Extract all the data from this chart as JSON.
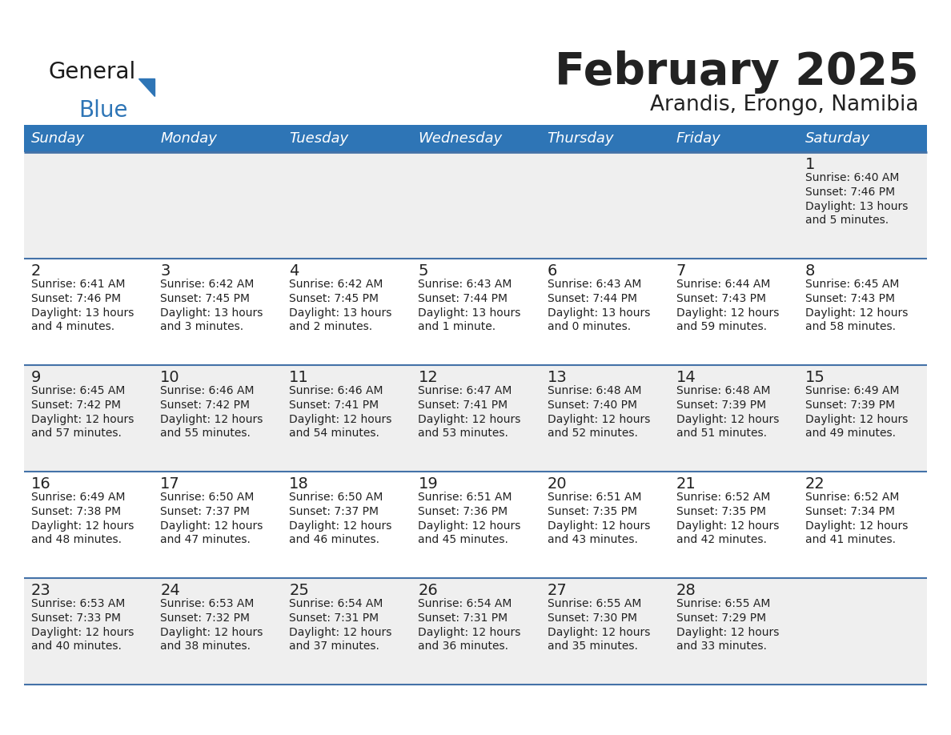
{
  "title": "February 2025",
  "subtitle": "Arandis, Erongo, Namibia",
  "header_color": "#2E75B6",
  "header_text_color": "#FFFFFF",
  "day_names": [
    "Sunday",
    "Monday",
    "Tuesday",
    "Wednesday",
    "Thursday",
    "Friday",
    "Saturday"
  ],
  "background_color": "#FFFFFF",
  "cell_bg_gray": "#EFEFEF",
  "divider_color": "#4472A8",
  "text_color": "#222222",
  "calendar_data": [
    [
      {
        "day": "",
        "sunrise": "",
        "sunset": "",
        "daylight": ""
      },
      {
        "day": "",
        "sunrise": "",
        "sunset": "",
        "daylight": ""
      },
      {
        "day": "",
        "sunrise": "",
        "sunset": "",
        "daylight": ""
      },
      {
        "day": "",
        "sunrise": "",
        "sunset": "",
        "daylight": ""
      },
      {
        "day": "",
        "sunrise": "",
        "sunset": "",
        "daylight": ""
      },
      {
        "day": "",
        "sunrise": "",
        "sunset": "",
        "daylight": ""
      },
      {
        "day": "1",
        "sunrise": "Sunrise: 6:40 AM",
        "sunset": "Sunset: 7:46 PM",
        "daylight": "Daylight: 13 hours\nand 5 minutes."
      }
    ],
    [
      {
        "day": "2",
        "sunrise": "Sunrise: 6:41 AM",
        "sunset": "Sunset: 7:46 PM",
        "daylight": "Daylight: 13 hours\nand 4 minutes."
      },
      {
        "day": "3",
        "sunrise": "Sunrise: 6:42 AM",
        "sunset": "Sunset: 7:45 PM",
        "daylight": "Daylight: 13 hours\nand 3 minutes."
      },
      {
        "day": "4",
        "sunrise": "Sunrise: 6:42 AM",
        "sunset": "Sunset: 7:45 PM",
        "daylight": "Daylight: 13 hours\nand 2 minutes."
      },
      {
        "day": "5",
        "sunrise": "Sunrise: 6:43 AM",
        "sunset": "Sunset: 7:44 PM",
        "daylight": "Daylight: 13 hours\nand 1 minute."
      },
      {
        "day": "6",
        "sunrise": "Sunrise: 6:43 AM",
        "sunset": "Sunset: 7:44 PM",
        "daylight": "Daylight: 13 hours\nand 0 minutes."
      },
      {
        "day": "7",
        "sunrise": "Sunrise: 6:44 AM",
        "sunset": "Sunset: 7:43 PM",
        "daylight": "Daylight: 12 hours\nand 59 minutes."
      },
      {
        "day": "8",
        "sunrise": "Sunrise: 6:45 AM",
        "sunset": "Sunset: 7:43 PM",
        "daylight": "Daylight: 12 hours\nand 58 minutes."
      }
    ],
    [
      {
        "day": "9",
        "sunrise": "Sunrise: 6:45 AM",
        "sunset": "Sunset: 7:42 PM",
        "daylight": "Daylight: 12 hours\nand 57 minutes."
      },
      {
        "day": "10",
        "sunrise": "Sunrise: 6:46 AM",
        "sunset": "Sunset: 7:42 PM",
        "daylight": "Daylight: 12 hours\nand 55 minutes."
      },
      {
        "day": "11",
        "sunrise": "Sunrise: 6:46 AM",
        "sunset": "Sunset: 7:41 PM",
        "daylight": "Daylight: 12 hours\nand 54 minutes."
      },
      {
        "day": "12",
        "sunrise": "Sunrise: 6:47 AM",
        "sunset": "Sunset: 7:41 PM",
        "daylight": "Daylight: 12 hours\nand 53 minutes."
      },
      {
        "day": "13",
        "sunrise": "Sunrise: 6:48 AM",
        "sunset": "Sunset: 7:40 PM",
        "daylight": "Daylight: 12 hours\nand 52 minutes."
      },
      {
        "day": "14",
        "sunrise": "Sunrise: 6:48 AM",
        "sunset": "Sunset: 7:39 PM",
        "daylight": "Daylight: 12 hours\nand 51 minutes."
      },
      {
        "day": "15",
        "sunrise": "Sunrise: 6:49 AM",
        "sunset": "Sunset: 7:39 PM",
        "daylight": "Daylight: 12 hours\nand 49 minutes."
      }
    ],
    [
      {
        "day": "16",
        "sunrise": "Sunrise: 6:49 AM",
        "sunset": "Sunset: 7:38 PM",
        "daylight": "Daylight: 12 hours\nand 48 minutes."
      },
      {
        "day": "17",
        "sunrise": "Sunrise: 6:50 AM",
        "sunset": "Sunset: 7:37 PM",
        "daylight": "Daylight: 12 hours\nand 47 minutes."
      },
      {
        "day": "18",
        "sunrise": "Sunrise: 6:50 AM",
        "sunset": "Sunset: 7:37 PM",
        "daylight": "Daylight: 12 hours\nand 46 minutes."
      },
      {
        "day": "19",
        "sunrise": "Sunrise: 6:51 AM",
        "sunset": "Sunset: 7:36 PM",
        "daylight": "Daylight: 12 hours\nand 45 minutes."
      },
      {
        "day": "20",
        "sunrise": "Sunrise: 6:51 AM",
        "sunset": "Sunset: 7:35 PM",
        "daylight": "Daylight: 12 hours\nand 43 minutes."
      },
      {
        "day": "21",
        "sunrise": "Sunrise: 6:52 AM",
        "sunset": "Sunset: 7:35 PM",
        "daylight": "Daylight: 12 hours\nand 42 minutes."
      },
      {
        "day": "22",
        "sunrise": "Sunrise: 6:52 AM",
        "sunset": "Sunset: 7:34 PM",
        "daylight": "Daylight: 12 hours\nand 41 minutes."
      }
    ],
    [
      {
        "day": "23",
        "sunrise": "Sunrise: 6:53 AM",
        "sunset": "Sunset: 7:33 PM",
        "daylight": "Daylight: 12 hours\nand 40 minutes."
      },
      {
        "day": "24",
        "sunrise": "Sunrise: 6:53 AM",
        "sunset": "Sunset: 7:32 PM",
        "daylight": "Daylight: 12 hours\nand 38 minutes."
      },
      {
        "day": "25",
        "sunrise": "Sunrise: 6:54 AM",
        "sunset": "Sunset: 7:31 PM",
        "daylight": "Daylight: 12 hours\nand 37 minutes."
      },
      {
        "day": "26",
        "sunrise": "Sunrise: 6:54 AM",
        "sunset": "Sunset: 7:31 PM",
        "daylight": "Daylight: 12 hours\nand 36 minutes."
      },
      {
        "day": "27",
        "sunrise": "Sunrise: 6:55 AM",
        "sunset": "Sunset: 7:30 PM",
        "daylight": "Daylight: 12 hours\nand 35 minutes."
      },
      {
        "day": "28",
        "sunrise": "Sunrise: 6:55 AM",
        "sunset": "Sunset: 7:29 PM",
        "daylight": "Daylight: 12 hours\nand 33 minutes."
      },
      {
        "day": "",
        "sunrise": "",
        "sunset": "",
        "daylight": ""
      }
    ]
  ],
  "logo_general_color": "#1a1a1a",
  "logo_blue_color": "#2E75B6",
  "title_fontsize": 40,
  "subtitle_fontsize": 19,
  "header_fontsize": 13,
  "day_num_fontsize": 14,
  "cell_text_fontsize": 10
}
